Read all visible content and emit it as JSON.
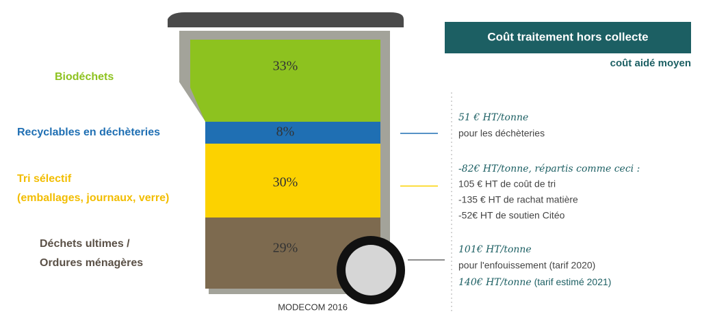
{
  "bin": {
    "segments": [
      {
        "label": "Biodéchets",
        "percent": "33%"
      },
      {
        "label": "Recyclables en déchèteries",
        "percent": "8%"
      },
      {
        "label_lines": [
          "Tri sélectif",
          "(emballages, journaux, verre)"
        ],
        "percent": "30%"
      },
      {
        "label_lines": [
          "Déchets ultimes /",
          "Ordures ménagères"
        ],
        "percent": "29%"
      }
    ],
    "source": "MODECOM 2016"
  },
  "header": {
    "title": "Coût traitement hors collecte",
    "subtitle": "coût aidé moyen"
  },
  "costs": [
    {
      "headline": "51 € HT/tonne",
      "lines": [
        "pour les déchèteries"
      ]
    },
    {
      "headline": "-82€ HT/tonne, répartis comme ceci :",
      "lines": [
        "105 € HT de coût de tri",
        "-135 € HT de rachat matière",
        "-52€ HT de soutien Citéo"
      ]
    },
    {
      "headline": "101€ HT/tonne",
      "lines": [
        "pour l'enfouissement (tarif 2020)"
      ],
      "extra_headline": "140€ HT/tonne",
      "extra_note": " (tarif estimé 2021)"
    }
  ]
}
